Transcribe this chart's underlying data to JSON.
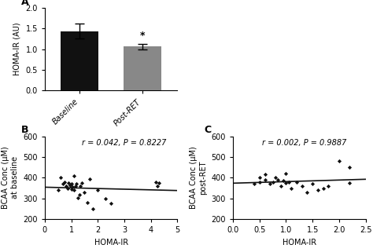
{
  "bar_values": [
    1.43,
    1.06
  ],
  "bar_errors": [
    0.18,
    0.07
  ],
  "bar_colors": [
    "#111111",
    "#888888"
  ],
  "bar_labels": [
    "Baseline",
    "Post-RET"
  ],
  "bar_ylabel": "HOMA-IR (AU)",
  "bar_ylim": [
    0,
    2.0
  ],
  "bar_yticks": [
    0.0,
    0.5,
    1.0,
    1.5,
    2.0
  ],
  "panel_a_label": "A",
  "panel_b_label": "B",
  "panel_c_label": "C",
  "scatter_b_annotation": "r = 0.042, P = 0.8227",
  "scatter_c_annotation": "r = 0.002, P = 0.9887",
  "scatter_ylabel_b": "BCAA Conc (μM)\nat baseline",
  "scatter_ylabel_c": "BCAA Conc (μM)\npost-RET",
  "scatter_xlabel": "HOMA-IR",
  "scatter_ylim": [
    200,
    600
  ],
  "scatter_yticks": [
    200,
    300,
    400,
    500,
    600
  ],
  "scatter_b_xlim": [
    0,
    5
  ],
  "scatter_b_xticks": [
    0,
    1,
    2,
    3,
    4,
    5
  ],
  "scatter_c_xlim": [
    0.0,
    2.5
  ],
  "scatter_c_xticks": [
    0.0,
    0.5,
    1.0,
    1.5,
    2.0,
    2.5
  ],
  "scatter_b_x": [
    0.5,
    0.6,
    0.7,
    0.75,
    0.8,
    0.85,
    0.9,
    0.95,
    1.0,
    1.0,
    1.05,
    1.1,
    1.1,
    1.15,
    1.2,
    1.25,
    1.3,
    1.35,
    1.4,
    1.5,
    1.6,
    1.7,
    1.8,
    2.0,
    2.3,
    2.5,
    4.2,
    4.25,
    4.3
  ],
  "scatter_b_y": [
    340,
    400,
    370,
    380,
    360,
    350,
    375,
    365,
    370,
    345,
    355,
    340,
    410,
    360,
    370,
    305,
    320,
    360,
    375,
    330,
    280,
    395,
    250,
    340,
    300,
    275,
    380,
    360,
    375
  ],
  "scatter_c_x": [
    0.4,
    0.5,
    0.5,
    0.6,
    0.6,
    0.7,
    0.75,
    0.8,
    0.85,
    0.9,
    0.95,
    1.0,
    1.0,
    1.05,
    1.1,
    1.2,
    1.3,
    1.4,
    1.5,
    1.6,
    1.7,
    1.8,
    2.0,
    2.2,
    2.2
  ],
  "scatter_c_y": [
    370,
    380,
    400,
    390,
    415,
    370,
    380,
    400,
    390,
    360,
    385,
    375,
    420,
    380,
    350,
    380,
    360,
    330,
    370,
    340,
    350,
    360,
    480,
    375,
    450
  ],
  "line_color": "#111111",
  "marker_color": "#111111",
  "background_color": "#ffffff",
  "tick_fontsize": 7,
  "label_fontsize": 7,
  "annotation_fontsize": 7,
  "panel_label_fontsize": 9
}
